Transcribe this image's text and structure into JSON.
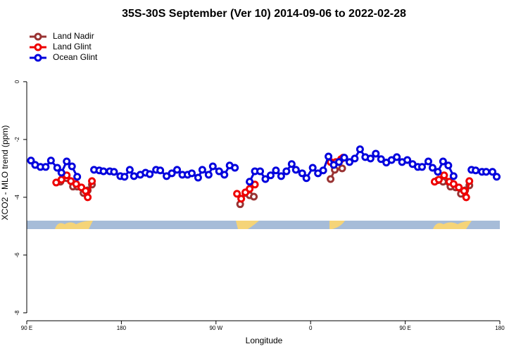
{
  "chart_data": {
    "type": "line",
    "title": "35S-30S September (Ver 10)   2014-09-06 to 2022-02-28",
    "x_label": "Longitude",
    "y_label": "XCO2 - MLO trend (ppm)",
    "xlim": [
      90,
      540
    ],
    "ylim": [
      -8.2,
      1.9
    ],
    "xticks": [
      {
        "value": 90,
        "label": "90 E"
      },
      180,
      {
        "value": 270,
        "label": "90 W"
      },
      {
        "value": 360,
        "label": "0"
      },
      {
        "value": 450,
        "label": "90 E"
      },
      {
        "value": 540,
        "label": "180"
      }
    ],
    "yticks": [
      0,
      -2,
      -4,
      -6,
      -8
    ],
    "legend": "top-left",
    "series": [
      {
        "name": "Land Nadir",
        "color": "#993333",
        "x": [
          122,
          128,
          134,
          138,
          144,
          148,
          152,
          200,
          293,
          298,
          302,
          306,
          340,
          379,
          383,
          390,
          430,
          481,
          486,
          493,
          498,
          503,
          507,
          511
        ],
        "values": [
          -3.46,
          -3.34,
          -3.63,
          -3.63,
          -3.85,
          -3.76,
          -3.56,
          null,
          -4.24,
          -3.85,
          -3.93,
          -3.98,
          null,
          -3.37,
          -3.05,
          -3.0,
          null,
          -3.41,
          -3.46,
          -3.63,
          -3.66,
          -3.88,
          -3.76,
          -3.59
        ]
      },
      {
        "name": "Land Glint",
        "color": "#ee0000",
        "x": [
          118,
          123,
          128,
          132,
          137,
          142,
          146,
          148,
          152,
          200,
          290,
          294,
          298,
          302,
          307,
          340,
          379,
          384,
          389,
          391,
          430,
          478,
          482,
          487,
          492,
          496,
          501,
          506,
          508,
          511
        ],
        "values": [
          -3.49,
          -3.39,
          -3.24,
          -3.44,
          -3.54,
          -3.66,
          -3.78,
          -4.0,
          -3.44,
          null,
          -3.88,
          -4.05,
          -3.83,
          -3.71,
          -3.56,
          null,
          -2.78,
          -2.78,
          -2.68,
          -2.63,
          null,
          -3.46,
          -3.39,
          -3.24,
          -3.46,
          -3.54,
          -3.66,
          -3.78,
          -4.0,
          -3.44
        ]
      },
      {
        "name": "Ocean Glint",
        "color": "#0000dd",
        "x": [
          94,
          98,
          103,
          108,
          113,
          119,
          123,
          128,
          133,
          138,
          146,
          154,
          159,
          163,
          169,
          173,
          179,
          183,
          188,
          192,
          198,
          203,
          207,
          213,
          217,
          223,
          228,
          233,
          238,
          243,
          247,
          253,
          257,
          263,
          267,
          273,
          278,
          283,
          288,
          295,
          302,
          307,
          312,
          317,
          322,
          327,
          332,
          337,
          342,
          346,
          352,
          356,
          362,
          367,
          372,
          377,
          382,
          387,
          392,
          397,
          402,
          407,
          412,
          417,
          422,
          427,
          432,
          437,
          442,
          447,
          452,
          457,
          462,
          466,
          472,
          476,
          481,
          486,
          491,
          496,
          505,
          513,
          517,
          523,
          527,
          533,
          537
        ],
        "values": [
          -2.73,
          -2.88,
          -2.95,
          -2.95,
          -2.73,
          -2.98,
          -3.15,
          -2.76,
          -2.93,
          -3.29,
          null,
          -3.05,
          -3.07,
          -3.1,
          -3.1,
          -3.12,
          -3.27,
          -3.29,
          -3.05,
          -3.27,
          -3.22,
          -3.15,
          -3.2,
          -3.05,
          -3.07,
          -3.27,
          -3.17,
          -3.05,
          -3.22,
          -3.22,
          -3.17,
          -3.32,
          -3.05,
          -3.22,
          -2.93,
          -3.1,
          -3.22,
          -2.9,
          -2.98,
          null,
          -3.46,
          -3.1,
          -3.1,
          -3.37,
          -3.24,
          -3.07,
          -3.27,
          -3.1,
          -2.85,
          -3.05,
          -3.17,
          -3.34,
          -2.98,
          -3.17,
          -3.07,
          -2.59,
          -2.88,
          -2.78,
          -2.63,
          -2.78,
          -2.66,
          -2.34,
          -2.61,
          -2.66,
          -2.49,
          -2.68,
          -2.8,
          -2.71,
          -2.61,
          -2.78,
          -2.71,
          -2.85,
          -2.95,
          -2.95,
          -2.76,
          -2.98,
          -3.12,
          -2.76,
          -2.9,
          -3.27,
          null,
          -3.05,
          -3.07,
          -3.12,
          -3.12,
          -3.12,
          -3.29
        ]
      }
    ]
  }
}
